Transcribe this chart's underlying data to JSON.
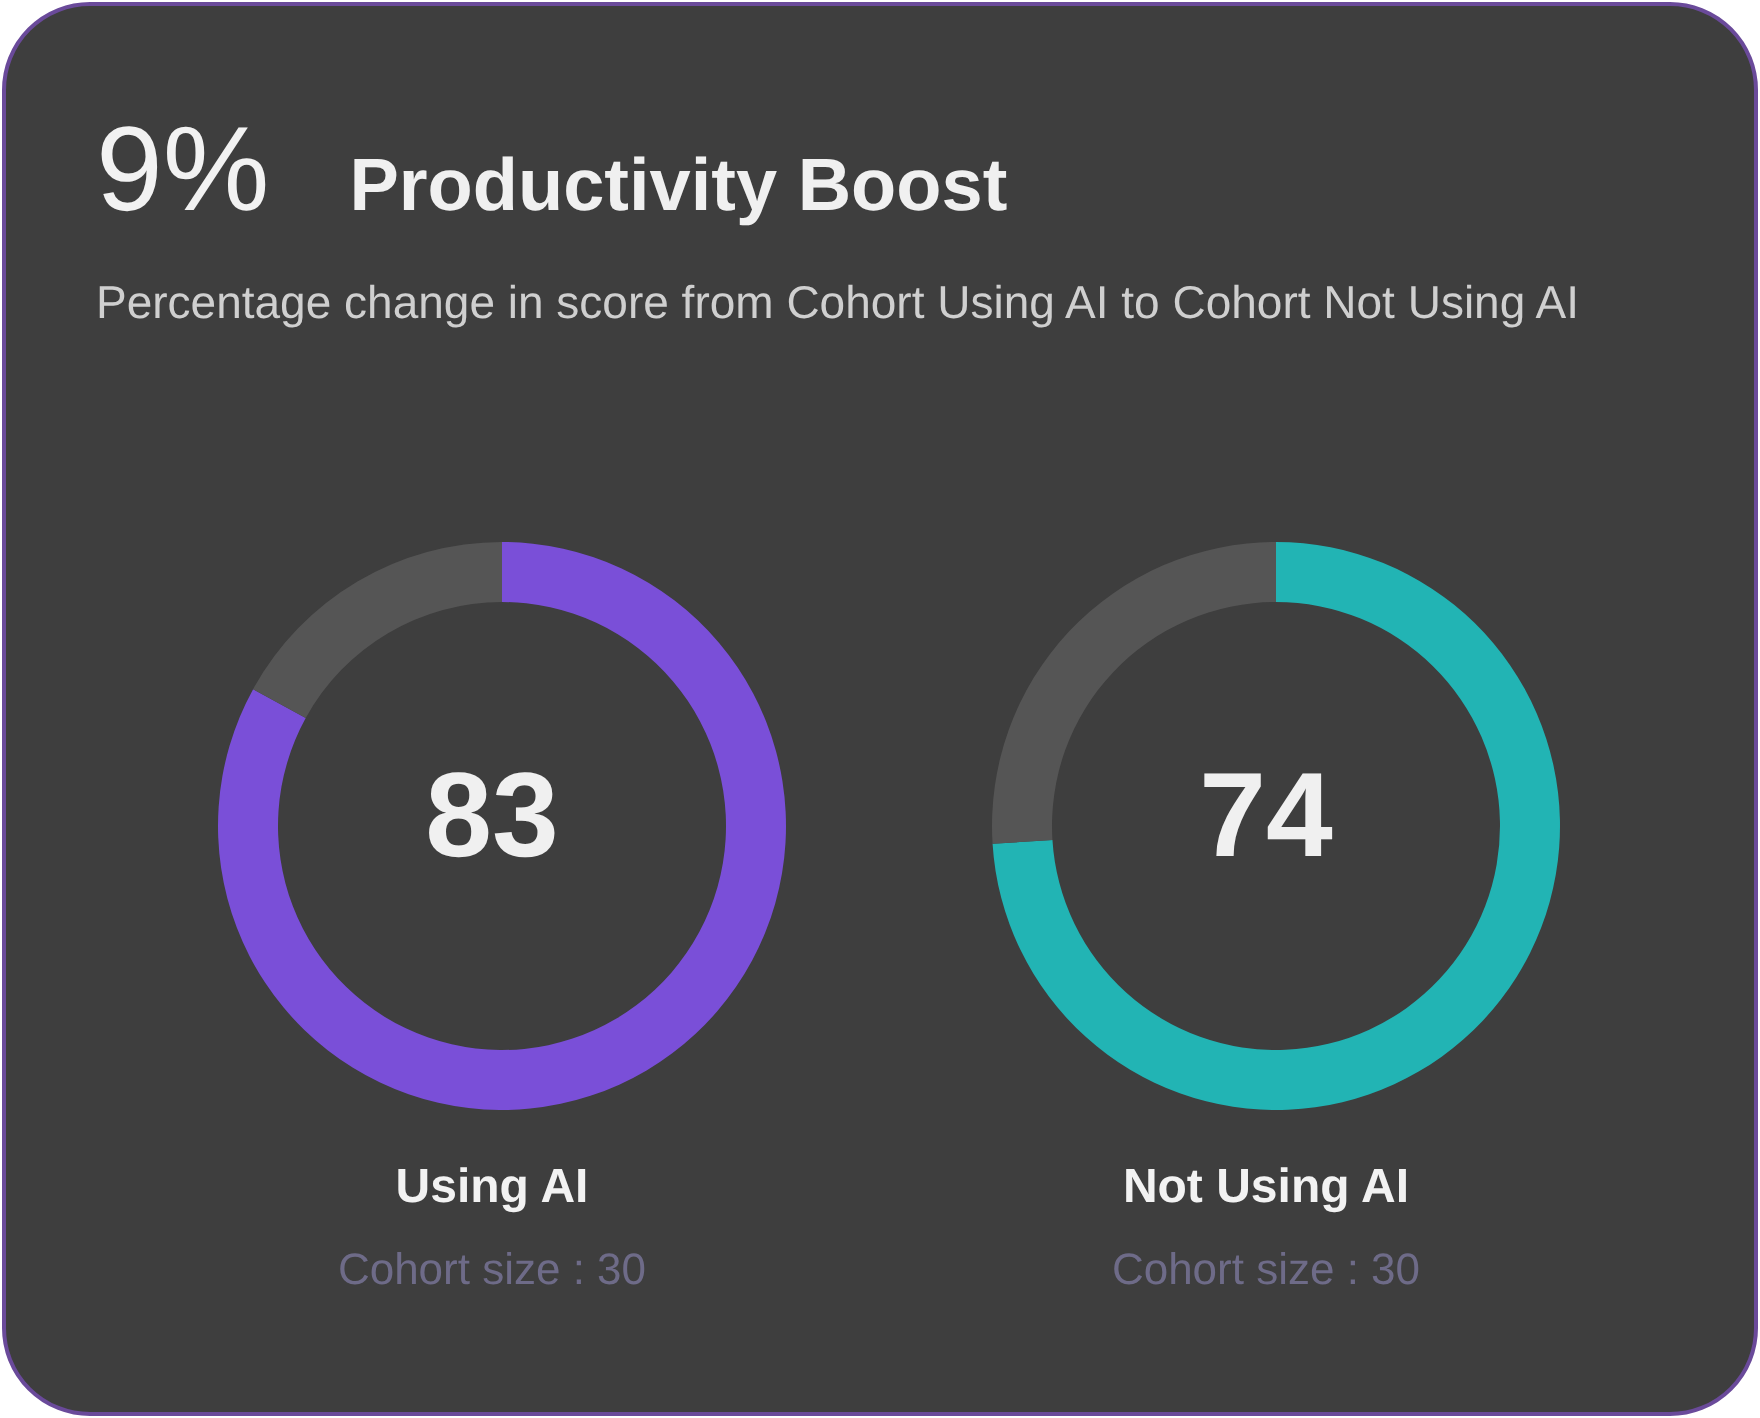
{
  "chart_data": [
    {
      "type": "other",
      "title": "Productivity Boost",
      "subtitle": "Percentage change in score from Cohort Using AI to Cohort Not Using AI",
      "annotations": [
        "9%"
      ]
    },
    {
      "type": "donut",
      "title": "Using AI",
      "categories": [
        null,
        null
      ],
      "values": [
        83,
        17
      ],
      "colors": [
        "#7a4fd8",
        "#555555"
      ],
      "annotations": [
        "83",
        "Cohort size : 30"
      ]
    },
    {
      "type": "donut",
      "title": "Not Using AI",
      "categories": [
        null,
        null
      ],
      "values": [
        74,
        26
      ],
      "colors": [
        "#22b4b4",
        "#555555"
      ],
      "annotations": [
        "74",
        "Cohort size : 30"
      ]
    }
  ]
}
